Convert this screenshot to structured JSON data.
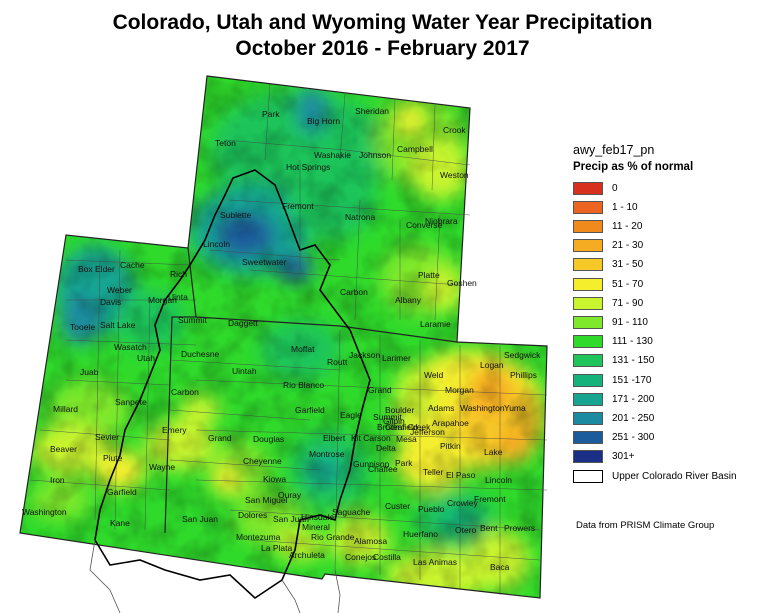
{
  "title": {
    "line1": "Colorado, Utah and Wyoming Water Year Precipitation",
    "line2": "October 2016 - February 2017"
  },
  "legend": {
    "layer": "awy_feb17_pn",
    "subtitle": "Precip as % of normal",
    "classes": [
      {
        "label": "0",
        "color": "#d7301f"
      },
      {
        "label": "1 - 10",
        "color": "#ec6422"
      },
      {
        "label": "11 - 20",
        "color": "#f18a1c"
      },
      {
        "label": "21 - 30",
        "color": "#f5ab22"
      },
      {
        "label": "31 - 50",
        "color": "#f7c928"
      },
      {
        "label": "51 - 70",
        "color": "#f4ee2d"
      },
      {
        "label": "71 - 90",
        "color": "#c9f42e"
      },
      {
        "label": "91 - 110",
        "color": "#7fe82a"
      },
      {
        "label": "111 - 130",
        "color": "#2fda2b"
      },
      {
        "label": "131 - 150",
        "color": "#1fc45a"
      },
      {
        "label": "151 -170",
        "color": "#15b37b"
      },
      {
        "label": "171 - 200",
        "color": "#17a592"
      },
      {
        "label": "201 - 250",
        "color": "#1c8aa0"
      },
      {
        "label": "251 - 300",
        "color": "#1d5c9c"
      },
      {
        "label": "301+",
        "color": "#1c2f86"
      },
      {
        "label": "Upper Colorado River Basin",
        "color": "#ffffff"
      }
    ]
  },
  "credit": "Data from PRISM Climate Group",
  "counties": {
    "wyoming": [
      "Park",
      "Big Horn",
      "Sheridan",
      "Crook",
      "Teton",
      "Washakie",
      "Johnson",
      "Campbell",
      "Hot Springs",
      "Weston",
      "Fremont",
      "Natrona",
      "Converse",
      "Niobrara",
      "Sublette",
      "Lincoln",
      "Sweetwater",
      "Carbon",
      "Albany",
      "Platte",
      "Goshen",
      "Laramie",
      "Uinta"
    ],
    "utah": [
      "Box Elder",
      "Cache",
      "Rich",
      "Weber",
      "Davis",
      "Morgan",
      "Tooele",
      "Salt Lake",
      "Summit",
      "Daggett",
      "Wasatch",
      "Utah",
      "Duchesne",
      "Uintah",
      "Juab",
      "Sanpete",
      "Carbon",
      "Millard",
      "Sevier",
      "Emery",
      "Grand",
      "Beaver",
      "Piute",
      "Wayne",
      "Iron",
      "Garfield",
      "Washington",
      "Kane",
      "San Juan"
    ],
    "colorado": [
      "Moffat",
      "Routt",
      "Jackson",
      "Larimer",
      "Weld",
      "Logan",
      "Sedgwick",
      "Phillips",
      "Morgan",
      "Rio Blanco",
      "Grand",
      "Boulder",
      "Gilpin",
      "Broomfield",
      "Adams",
      "Washington",
      "Yuma",
      "Garfield",
      "Eagle",
      "Summit",
      "Clear Creek",
      "Jefferson",
      "Arapahoe",
      "Mesa",
      "Pitkin",
      "Lake",
      "Douglas",
      "Elbert",
      "Kit Carson",
      "Delta",
      "Park",
      "Teller",
      "El Paso",
      "Lincoln",
      "Cheyenne",
      "Montrose",
      "Gunnison",
      "Chaffee",
      "Fremont",
      "Kiowa",
      "Ouray",
      "San Miguel",
      "Hinsdale",
      "Mineral",
      "Saguache",
      "Custer",
      "Pueblo",
      "Crowley",
      "Otero",
      "Bent",
      "Prowers",
      "Dolores",
      "San Juan",
      "Montezuma",
      "La Plata",
      "Archuleta",
      "Rio Grande",
      "Alamosa",
      "Costilla",
      "Huerfano",
      "Conejos",
      "Las Animas",
      "Baca"
    ]
  }
}
